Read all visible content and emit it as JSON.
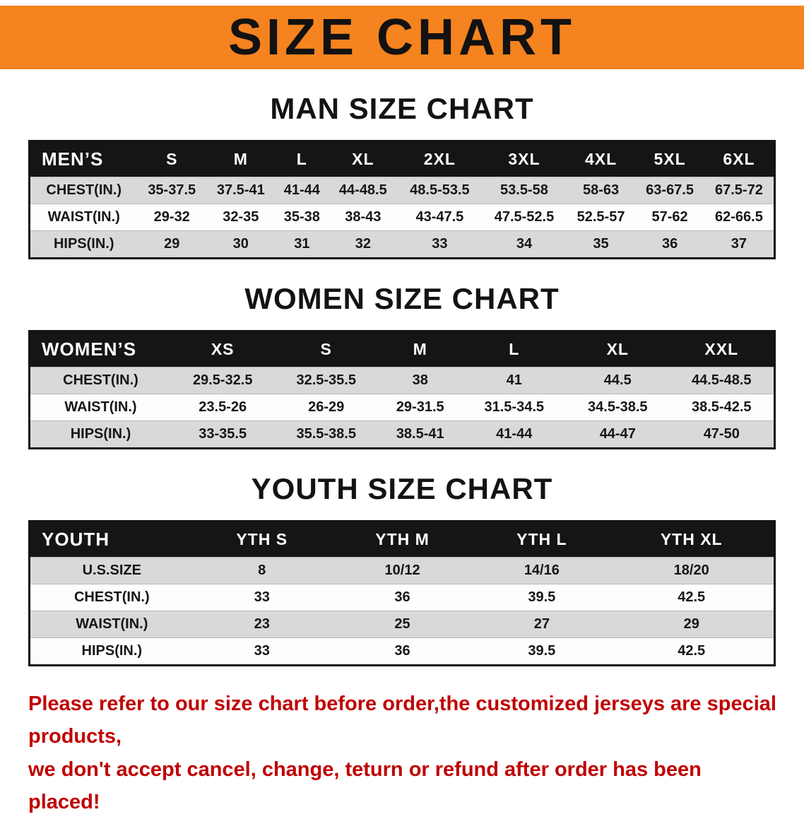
{
  "banner": {
    "title": "SIZE CHART"
  },
  "colors": {
    "banner-orange": "#f5831f",
    "table-header-bg": "#151515",
    "row-stripe": "#d9d9d9",
    "disclaimer-red": "#c00000",
    "text-black": "#131313"
  },
  "sections": {
    "men": {
      "heading": "MAN SIZE CHART",
      "table": {
        "header": [
          "MEN’S",
          "S",
          "M",
          "L",
          "XL",
          "2XL",
          "3XL",
          "4XL",
          "5XL",
          "6XL"
        ],
        "rows": [
          [
            "CHEST(IN.)",
            "35-37.5",
            "37.5-41",
            "41-44",
            "44-48.5",
            "48.5-53.5",
            "53.5-58",
            "58-63",
            "63-67.5",
            "67.5-72"
          ],
          [
            "WAIST(IN.)",
            "29-32",
            "32-35",
            "35-38",
            "38-43",
            "43-47.5",
            "47.5-52.5",
            "52.5-57",
            "57-62",
            "62-66.5"
          ],
          [
            "HIPS(IN.)",
            "29",
            "30",
            "31",
            "32",
            "33",
            "34",
            "35",
            "36",
            "37"
          ]
        ]
      }
    },
    "women": {
      "heading": "WOMEN SIZE CHART",
      "table": {
        "header": [
          "WOMEN’S",
          "XS",
          "S",
          "M",
          "L",
          "XL",
          "XXL"
        ],
        "rows": [
          [
            "CHEST(IN.)",
            "29.5-32.5",
            "32.5-35.5",
            "38",
            "41",
            "44.5",
            "44.5-48.5"
          ],
          [
            "WAIST(IN.)",
            "23.5-26",
            "26-29",
            "29-31.5",
            "31.5-34.5",
            "34.5-38.5",
            "38.5-42.5"
          ],
          [
            "HIPS(IN.)",
            "33-35.5",
            "35.5-38.5",
            "38.5-41",
            "41-44",
            "44-47",
            "47-50"
          ]
        ]
      }
    },
    "youth": {
      "heading": "YOUTH SIZE CHART",
      "table": {
        "header": [
          "YOUTH",
          "YTH S",
          "YTH M",
          "YTH L",
          "YTH XL"
        ],
        "rows": [
          [
            "U.S.SIZE",
            "8",
            "10/12",
            "14/16",
            "18/20"
          ],
          [
            "CHEST(IN.)",
            "33",
            "36",
            "39.5",
            "42.5"
          ],
          [
            "WAIST(IN.)",
            "23",
            "25",
            "27",
            "29"
          ],
          [
            "HIPS(IN.)",
            "33",
            "36",
            "39.5",
            "42.5"
          ]
        ]
      }
    }
  },
  "disclaimer": {
    "line1": "Please refer to our size chart before order,the customized jerseys are special products,",
    "line2": "we don't accept cancel, change, teturn or refund after order has been placed!"
  }
}
